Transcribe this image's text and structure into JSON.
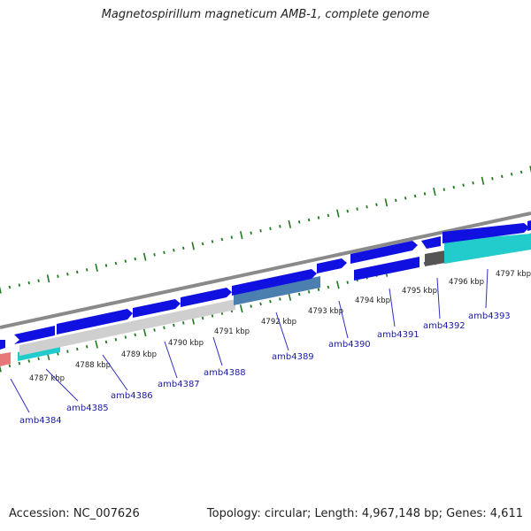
{
  "title": "Magnetospirillum magneticum AMB-1, complete genome",
  "footer": {
    "accession": "Accession: NC_007626",
    "summary": "Topology: circular; Length: 4,967,148 bp; Genes: 4,611"
  },
  "map": {
    "kbp_labels": [
      "4787 kbp",
      "4788 kbp",
      "4789 kbp",
      "4790 kbp",
      "4791 kbp",
      "4792 kbp",
      "4793 kbp",
      "4794 kbp",
      "4795 kbp",
      "4796 kbp",
      "4797 kbp"
    ],
    "gene_labels": [
      "amb4384",
      "amb4385",
      "amb4386",
      "amb4387",
      "amb4388",
      "amb4389",
      "amb4390",
      "amb4391",
      "amb4392",
      "amb4393"
    ],
    "colors": {
      "backbone": "#888888",
      "cds": "#1010e0",
      "cds_dark": "#0a0aa0",
      "gray_block": "#c8c8c8",
      "steel_block": "#4a7fb0",
      "cyan_block": "#22cccc",
      "dark_block": "#555555",
      "pink_block": "#e87878",
      "tick": "#1f7a1f",
      "label_line": "#3030c0"
    }
  }
}
